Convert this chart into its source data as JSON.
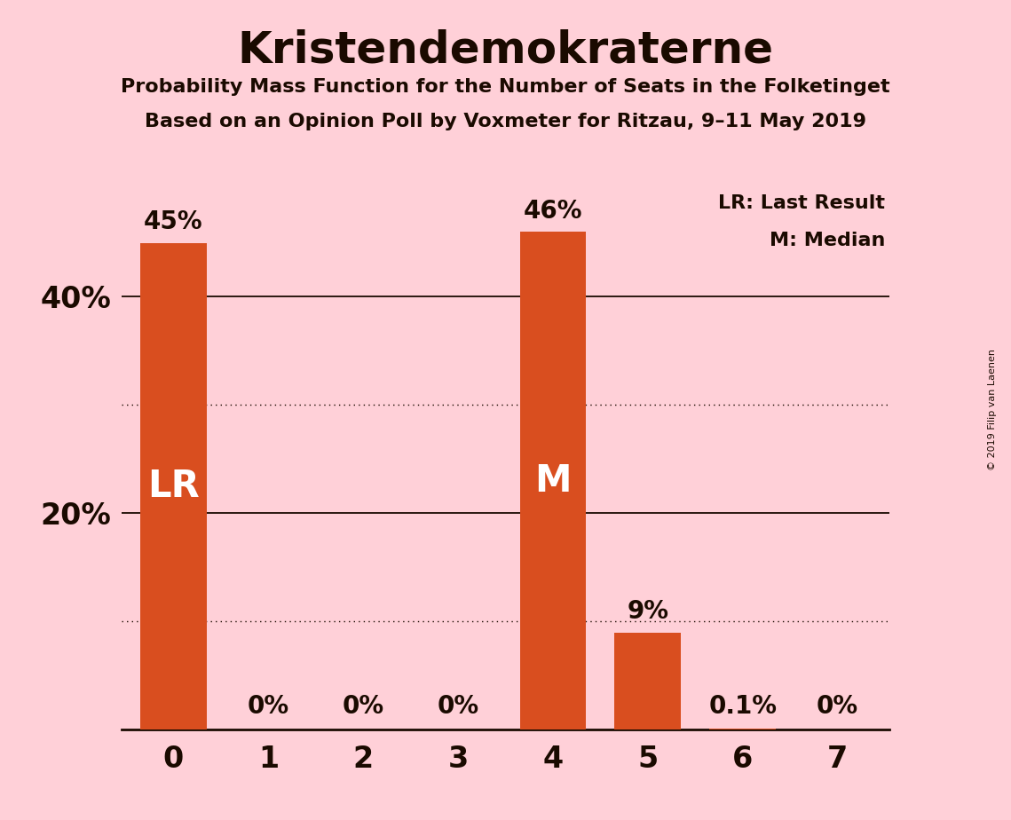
{
  "title": "Kristendemokraterne",
  "subtitle1": "Probability Mass Function for the Number of Seats in the Folketinget",
  "subtitle2": "Based on an Opinion Poll by Voxmeter for Ritzau, 9–11 May 2019",
  "copyright": "© 2019 Filip van Laenen",
  "categories": [
    0,
    1,
    2,
    3,
    4,
    5,
    6,
    7
  ],
  "values": [
    45,
    0,
    0,
    0,
    46,
    9,
    0.1,
    0
  ],
  "bar_color": "#D94E1F",
  "background_color": "#FFD0D8",
  "title_color": "#1a0a00",
  "label_color": "#1a0a00",
  "bar_labels": [
    "45%",
    "0%",
    "0%",
    "0%",
    "46%",
    "9%",
    "0.1%",
    "0%"
  ],
  "bar_annotations": [
    {
      "bar": 0,
      "text": "LR",
      "color": "white"
    },
    {
      "bar": 4,
      "text": "M",
      "color": "white"
    }
  ],
  "legend_lines": [
    "LR: Last Result",
    "M: Median"
  ],
  "ylim": [
    0,
    50
  ],
  "yticks": [
    20,
    40
  ],
  "ytick_labels": [
    "20%",
    "40%"
  ],
  "solid_gridlines": [
    20,
    40
  ],
  "dotted_gridlines": [
    10,
    30
  ],
  "xlim": [
    -0.55,
    7.55
  ]
}
